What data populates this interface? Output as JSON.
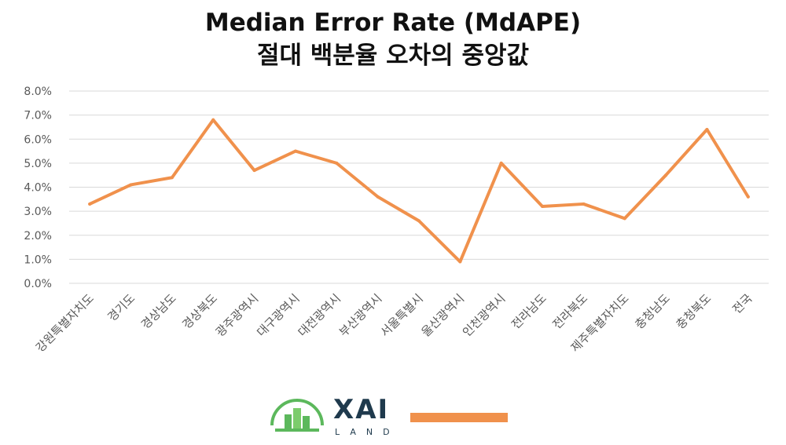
{
  "chart_data": {
    "type": "line",
    "title": "Median Error Rate (MdAPE)",
    "subtitle": "절대 백분율 오차의 중앙값",
    "xlabel": "",
    "ylabel": "",
    "categories": [
      "강원특별자치도",
      "경기도",
      "경상남도",
      "경상북도",
      "광주광역시",
      "대구광역시",
      "대전광역시",
      "부산광역시",
      "서울특별시",
      "울산광역시",
      "인천광역시",
      "전라남도",
      "전라북도",
      "제주특별자치도",
      "충청남도",
      "충청북도",
      "전국"
    ],
    "series": [
      {
        "values": [
          3.3,
          4.1,
          4.4,
          6.8,
          4.7,
          5.5,
          5.0,
          3.6,
          2.6,
          0.9,
          5.0,
          3.2,
          3.3,
          2.7,
          4.5,
          6.4,
          3.6
        ]
      }
    ],
    "ylim": [
      0,
      8
    ],
    "yticks": [
      "0.0%",
      "1.0%",
      "2.0%",
      "3.0%",
      "4.0%",
      "5.0%",
      "6.0%",
      "7.0%",
      "8.0%"
    ],
    "grid": true,
    "legend": "bottom",
    "colors": {
      "line": "#f0914c",
      "grid": "#d9d9d9",
      "tick_text": "#595959"
    }
  },
  "logo": {
    "name": "XAI",
    "sub": "LAND",
    "icon": "building-arc-icon"
  }
}
